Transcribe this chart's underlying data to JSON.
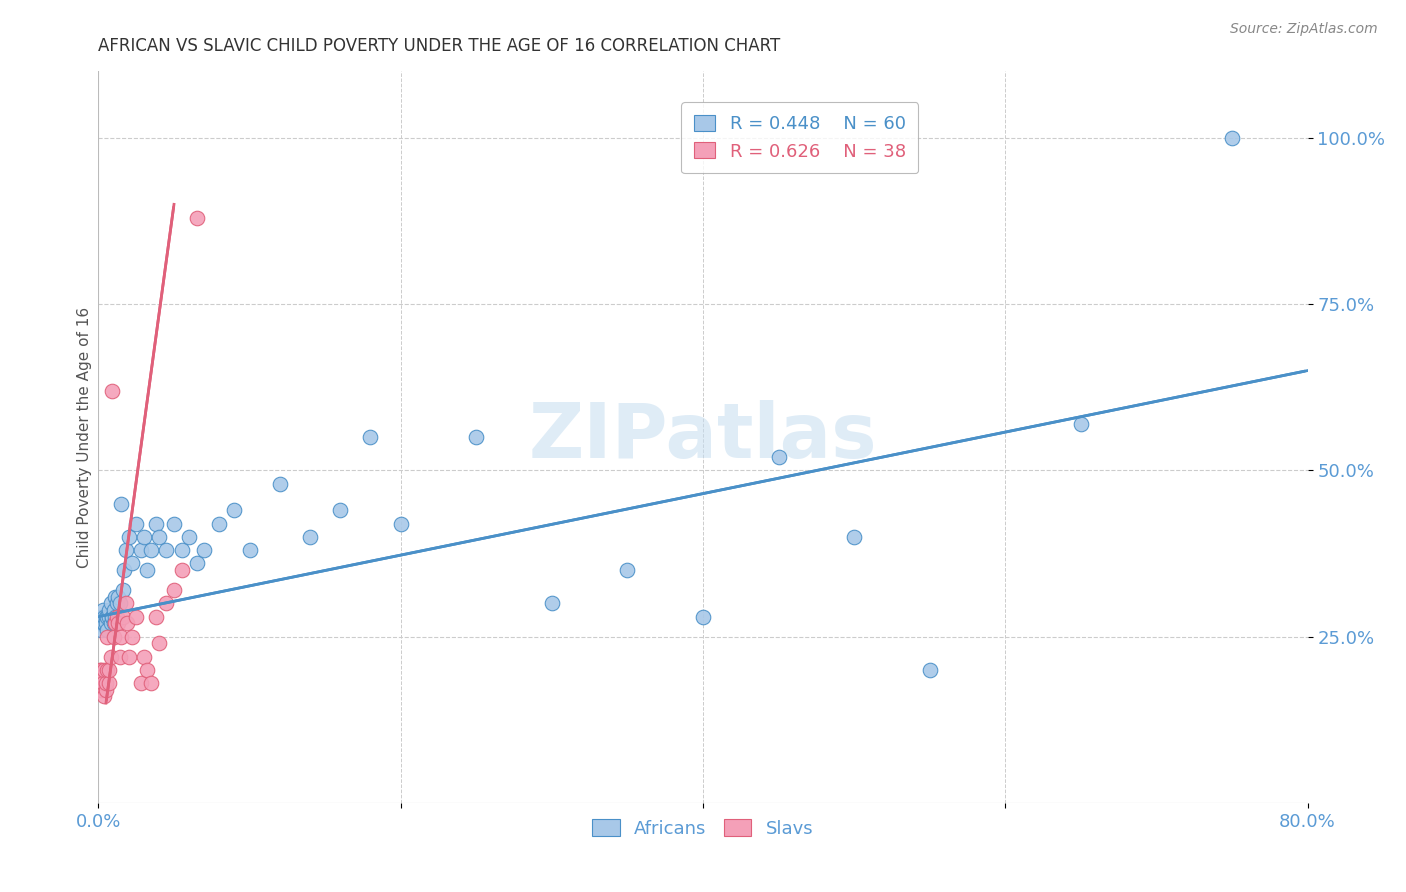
{
  "title": "AFRICAN VS SLAVIC CHILD POVERTY UNDER THE AGE OF 16 CORRELATION CHART",
  "source": "Source: ZipAtlas.com",
  "ylabel": "Child Poverty Under the Age of 16",
  "yticks": [
    "100.0%",
    "75.0%",
    "50.0%",
    "25.0%"
  ],
  "ytick_vals": [
    1.0,
    0.75,
    0.5,
    0.25
  ],
  "watermark": "ZIPatlas",
  "legend_africans_r": "R = 0.448",
  "legend_africans_n": "N = 60",
  "legend_slavs_r": "R = 0.626",
  "legend_slavs_n": "N = 38",
  "african_color": "#a8c8e8",
  "slavic_color": "#f4a0b8",
  "african_line_color": "#4a90c8",
  "slavic_line_color": "#e0607a",
  "axis_color": "#5b9bd5",
  "africans_x": [
    0.001,
    0.002,
    0.002,
    0.003,
    0.003,
    0.004,
    0.004,
    0.005,
    0.005,
    0.006,
    0.006,
    0.007,
    0.007,
    0.008,
    0.008,
    0.009,
    0.009,
    0.01,
    0.01,
    0.011,
    0.011,
    0.012,
    0.013,
    0.014,
    0.015,
    0.016,
    0.017,
    0.018,
    0.02,
    0.022,
    0.025,
    0.028,
    0.03,
    0.032,
    0.035,
    0.038,
    0.04,
    0.045,
    0.05,
    0.055,
    0.06,
    0.065,
    0.07,
    0.08,
    0.09,
    0.1,
    0.12,
    0.14,
    0.16,
    0.18,
    0.2,
    0.25,
    0.3,
    0.35,
    0.4,
    0.45,
    0.5,
    0.55,
    0.65,
    0.75
  ],
  "africans_y": [
    0.27,
    0.26,
    0.28,
    0.27,
    0.29,
    0.27,
    0.28,
    0.28,
    0.27,
    0.26,
    0.28,
    0.28,
    0.29,
    0.27,
    0.3,
    0.28,
    0.28,
    0.27,
    0.29,
    0.28,
    0.31,
    0.3,
    0.31,
    0.3,
    0.45,
    0.32,
    0.35,
    0.38,
    0.4,
    0.36,
    0.42,
    0.38,
    0.4,
    0.35,
    0.38,
    0.42,
    0.4,
    0.38,
    0.42,
    0.38,
    0.4,
    0.36,
    0.38,
    0.42,
    0.44,
    0.38,
    0.48,
    0.4,
    0.44,
    0.55,
    0.42,
    0.55,
    0.3,
    0.35,
    0.28,
    0.52,
    0.4,
    0.2,
    0.57,
    1.0
  ],
  "slavs_x": [
    0.001,
    0.001,
    0.002,
    0.002,
    0.003,
    0.003,
    0.004,
    0.004,
    0.005,
    0.005,
    0.006,
    0.006,
    0.007,
    0.007,
    0.008,
    0.009,
    0.01,
    0.011,
    0.012,
    0.013,
    0.014,
    0.015,
    0.016,
    0.018,
    0.019,
    0.02,
    0.022,
    0.025,
    0.028,
    0.03,
    0.032,
    0.035,
    0.038,
    0.04,
    0.045,
    0.05,
    0.055,
    0.065
  ],
  "slavs_y": [
    0.2,
    0.18,
    0.2,
    0.17,
    0.19,
    0.18,
    0.16,
    0.2,
    0.17,
    0.18,
    0.2,
    0.25,
    0.18,
    0.2,
    0.22,
    0.62,
    0.25,
    0.27,
    0.28,
    0.27,
    0.22,
    0.25,
    0.28,
    0.3,
    0.27,
    0.22,
    0.25,
    0.28,
    0.18,
    0.22,
    0.2,
    0.18,
    0.28,
    0.24,
    0.3,
    0.32,
    0.35,
    0.88
  ],
  "african_line_x0": 0.0,
  "african_line_x1": 0.8,
  "african_line_y0": 0.28,
  "african_line_y1": 0.65,
  "slavic_line_x0": 0.005,
  "slavic_line_x1": 0.05,
  "slavic_line_y0": 0.15,
  "slavic_line_y1": 0.9,
  "xmin": 0.0,
  "xmax": 0.8,
  "ymin": 0.0,
  "ymax": 1.1
}
